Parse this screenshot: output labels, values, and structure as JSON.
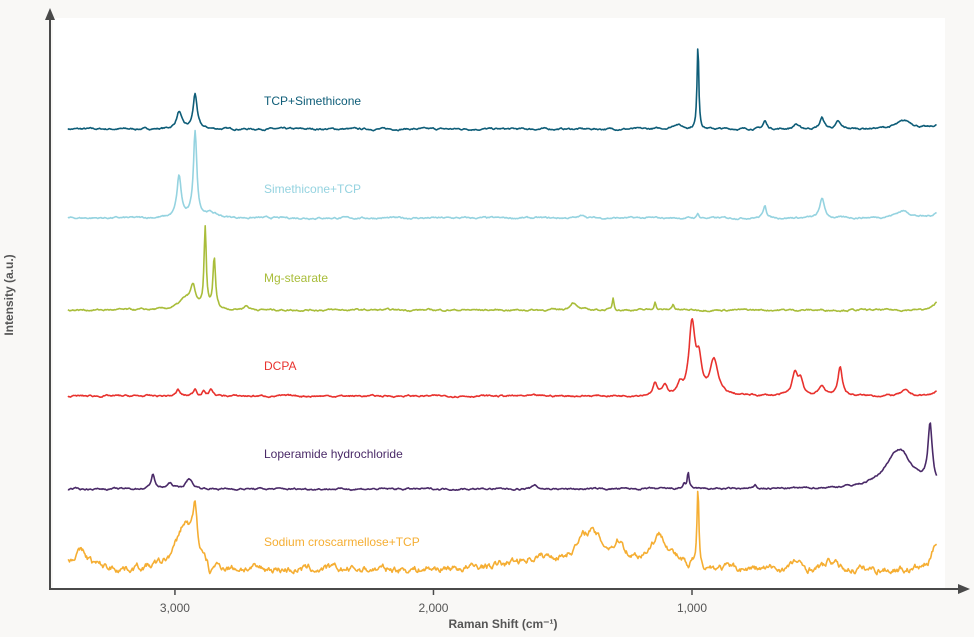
{
  "chart_data": {
    "type": "line",
    "title": "",
    "xlabel": "Raman Shift (cm⁻¹)",
    "ylabel": "Intensity (a.u.)",
    "xlim": [
      3480,
      50
    ],
    "x_reversed": true,
    "ylim": [
      0,
      570
    ],
    "x_ticks": [
      3000,
      2000,
      1000
    ],
    "x_tick_labels": [
      "3,000",
      "2,000",
      "1,000"
    ],
    "grid": false,
    "legend": "inline labels above each trace",
    "series": [
      {
        "name": "TCP+Simethicone",
        "color": "#0e5d78",
        "baseline": 459,
        "peaks": [
          {
            "shift": 2984,
            "height": 17,
            "width": 12
          },
          {
            "shift": 2922,
            "height": 35,
            "width": 9
          },
          {
            "shift": 1058,
            "height": 5,
            "width": 20
          },
          {
            "shift": 977,
            "height": 85,
            "width": 4
          },
          {
            "shift": 718,
            "height": 8,
            "width": 8
          },
          {
            "shift": 598,
            "height": 5,
            "width": 10
          },
          {
            "shift": 497,
            "height": 11,
            "width": 10
          },
          {
            "shift": 435,
            "height": 7,
            "width": 10
          },
          {
            "shift": 176,
            "height": 8,
            "width": 40
          },
          {
            "shift": 52,
            "height": 3,
            "width": 20
          }
        ]
      },
      {
        "name": "Simethicone+TCP",
        "color": "#95d3e0",
        "baseline": 370,
        "peaks": [
          {
            "shift": 2984,
            "height": 41,
            "width": 10
          },
          {
            "shift": 2922,
            "height": 85,
            "width": 8
          },
          {
            "shift": 2864,
            "height": 5,
            "width": 30
          },
          {
            "shift": 1421,
            "height": 3,
            "width": 12
          },
          {
            "shift": 977,
            "height": 5,
            "width": 4
          },
          {
            "shift": 718,
            "height": 13,
            "width": 7
          },
          {
            "shift": 497,
            "height": 20,
            "width": 10
          },
          {
            "shift": 184,
            "height": 7,
            "width": 35
          },
          {
            "shift": 52,
            "height": 5,
            "width": 20
          }
        ]
      },
      {
        "name": "Mg-stearate",
        "color": "#a9bd3a",
        "baseline": 278,
        "peaks": [
          {
            "shift": 2960,
            "height": 10,
            "width": 30
          },
          {
            "shift": 2930,
            "height": 20,
            "width": 12
          },
          {
            "shift": 2883,
            "height": 80,
            "width": 5
          },
          {
            "shift": 2848,
            "height": 50,
            "width": 6
          },
          {
            "shift": 2724,
            "height": 4,
            "width": 12
          },
          {
            "shift": 1460,
            "height": 8,
            "width": 14
          },
          {
            "shift": 1305,
            "height": 12,
            "width": 4
          },
          {
            "shift": 1143,
            "height": 8,
            "width": 5
          },
          {
            "shift": 1073,
            "height": 6,
            "width": 5
          },
          {
            "shift": 52,
            "height": 8,
            "width": 15
          }
        ]
      },
      {
        "name": "DCPA",
        "color": "#e8322e",
        "baseline": 192,
        "peaks": [
          {
            "shift": 2988,
            "height": 6,
            "width": 8
          },
          {
            "shift": 2922,
            "height": 7,
            "width": 8
          },
          {
            "shift": 2890,
            "height": 5,
            "width": 6
          },
          {
            "shift": 2860,
            "height": 7,
            "width": 8
          },
          {
            "shift": 1143,
            "height": 12,
            "width": 10
          },
          {
            "shift": 1104,
            "height": 10,
            "width": 10
          },
          {
            "shift": 1046,
            "height": 10,
            "width": 10
          },
          {
            "shift": 1000,
            "height": 70,
            "width": 14
          },
          {
            "shift": 973,
            "height": 30,
            "width": 12
          },
          {
            "shift": 915,
            "height": 35,
            "width": 18
          },
          {
            "shift": 602,
            "height": 22,
            "width": 12
          },
          {
            "shift": 580,
            "height": 15,
            "width": 12
          },
          {
            "shift": 497,
            "height": 10,
            "width": 12
          },
          {
            "shift": 427,
            "height": 29,
            "width": 10
          },
          {
            "shift": 176,
            "height": 5,
            "width": 20
          },
          {
            "shift": 52,
            "height": 5,
            "width": 15
          }
        ]
      },
      {
        "name": "Loperamide hydrochloride",
        "color": "#4a2a68",
        "baseline": 99,
        "peaks": [
          {
            "shift": 3085,
            "height": 15,
            "width": 8
          },
          {
            "shift": 3019,
            "height": 5,
            "width": 15
          },
          {
            "shift": 2945,
            "height": 10,
            "width": 15
          },
          {
            "shift": 1607,
            "height": 4,
            "width": 10
          },
          {
            "shift": 1030,
            "height": 5,
            "width": 6
          },
          {
            "shift": 1015,
            "height": 16,
            "width": 4
          },
          {
            "shift": 755,
            "height": 4,
            "width": 4
          },
          {
            "shift": 200,
            "height": 40,
            "width": 60
          },
          {
            "shift": 79,
            "height": 60,
            "width": 10
          }
        ]
      },
      {
        "name": "Sodium croscarmellose+TCP",
        "color": "#f5ae33",
        "baseline": 18,
        "peaks": [
          {
            "shift": 3367,
            "height": 18,
            "width": 40
          },
          {
            "shift": 2961,
            "height": 45,
            "width": 40
          },
          {
            "shift": 2922,
            "height": 45,
            "width": 10
          },
          {
            "shift": 2864,
            "height": -14,
            "width": 6
          },
          {
            "shift": 1600,
            "height": 10,
            "width": 120
          },
          {
            "shift": 1395,
            "height": 35,
            "width": 60
          },
          {
            "shift": 1280,
            "height": 18,
            "width": 30
          },
          {
            "shift": 1124,
            "height": 32,
            "width": 50
          },
          {
            "shift": 1015,
            "height": -8,
            "width": 6
          },
          {
            "shift": 977,
            "height": 75,
            "width": 4
          },
          {
            "shift": 600,
            "height": 8,
            "width": 15
          },
          {
            "shift": 460,
            "height": 8,
            "width": 25
          },
          {
            "shift": 52,
            "height": 30,
            "width": 20
          }
        ]
      }
    ]
  }
}
